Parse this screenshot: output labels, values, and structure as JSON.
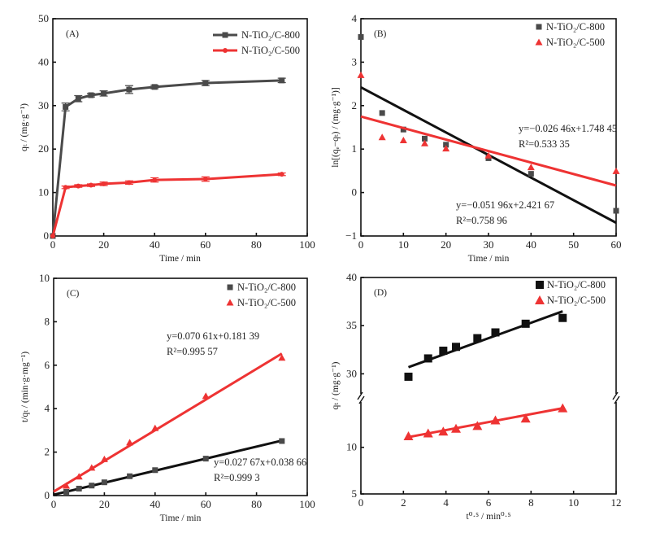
{
  "colors": {
    "c800": "#4a4a4a",
    "c800_d": "#111111",
    "c500": "#ee3333",
    "fit800": "#111111"
  },
  "chart_data": [
    {
      "panel": "(A)",
      "type": "line",
      "xlabel": "Time / min",
      "ylabel": "qₜ / (mg·g⁻¹)",
      "xlim": [
        0,
        100
      ],
      "ylim": [
        0,
        50
      ],
      "xticks": [
        0,
        20,
        40,
        60,
        80,
        100
      ],
      "yticks": [
        0,
        10,
        20,
        30,
        40,
        50
      ],
      "x": [
        0,
        5,
        10,
        15,
        20,
        30,
        40,
        60,
        90
      ],
      "series": [
        {
          "name": "N-TiO₂/C-800",
          "marker": "square",
          "values": [
            0,
            29.7,
            31.6,
            32.4,
            32.8,
            33.7,
            34.3,
            35.2,
            35.8
          ],
          "errors": [
            0,
            0.9,
            0.7,
            0.4,
            0.6,
            0.9,
            0.4,
            0.6,
            0.5
          ]
        },
        {
          "name": "N-TiO₂/C-500",
          "marker": "circle",
          "values": [
            0,
            11.2,
            11.5,
            11.7,
            12.0,
            12.3,
            12.9,
            13.1,
            14.2
          ],
          "errors": [
            0,
            0.3,
            0.3,
            0.3,
            0.4,
            0.4,
            0.5,
            0.5,
            0.3
          ]
        }
      ]
    },
    {
      "panel": "(B)",
      "type": "scatter",
      "xlabel": "Time / min",
      "ylabel": "ln[(qₑ−qₜ) / (mg·g⁻¹)]",
      "xlim": [
        0,
        60
      ],
      "ylim": [
        -1,
        4
      ],
      "xticks": [
        0,
        10,
        20,
        30,
        40,
        50,
        60
      ],
      "yticks": [
        -1,
        0,
        1,
        2,
        3,
        4
      ],
      "x": [
        0,
        5,
        10,
        15,
        20,
        30,
        40,
        60
      ],
      "series": [
        {
          "name": "N-TiO₂/C-800",
          "marker": "square",
          "values": [
            3.58,
            1.83,
            1.45,
            1.24,
            1.1,
            0.79,
            0.43,
            -0.42
          ],
          "fit": {
            "slope": -0.05196,
            "intercept": 2.42167
          },
          "equation": "y=−0.051 96x+2.421 67",
          "r2": "R²=0.758 96"
        },
        {
          "name": "N-TiO₂/C-500",
          "marker": "triangle",
          "values": [
            2.7,
            1.27,
            1.2,
            1.13,
            1.01,
            0.85,
            0.58,
            0.49
          ],
          "fit": {
            "slope": -0.02646,
            "intercept": 1.74845
          },
          "equation": "y=−0.026 46x+1.748 45",
          "r2": "R²=0.533 35"
        }
      ]
    },
    {
      "panel": "(C)",
      "type": "scatter",
      "xlabel": "Time / min",
      "ylabel": "t/qₜ / (min·g·mg⁻¹)",
      "xlim": [
        0,
        100
      ],
      "ylim": [
        0,
        10
      ],
      "xticks": [
        0,
        20,
        40,
        60,
        80,
        100
      ],
      "yticks": [
        0,
        2,
        4,
        6,
        8,
        10
      ],
      "x": [
        5,
        10,
        15,
        20,
        30,
        40,
        60,
        90
      ],
      "series": [
        {
          "name": "N-TiO₂/C-800",
          "marker": "square",
          "values": [
            0.17,
            0.32,
            0.46,
            0.61,
            0.89,
            1.17,
            1.7,
            2.51
          ],
          "fit": {
            "slope": 0.02767,
            "intercept": 0.03866
          },
          "equation": "y=0.027 67x+0.038 66",
          "r2": "R²=0.999 3"
        },
        {
          "name": "N-TiO₂/C-500",
          "marker": "triangle",
          "values": [
            0.45,
            0.87,
            1.28,
            1.67,
            2.44,
            3.1,
            4.58,
            6.34
          ],
          "fit": {
            "slope": 0.07061,
            "intercept": 0.18139
          },
          "equation": "y=0.070 61x+0.181 39",
          "r2": "R²=0.995 57"
        }
      ]
    },
    {
      "panel": "(D)",
      "type": "scatter",
      "xlabel": "t⁰·⁵ / min⁰·⁵",
      "ylabel": "qₜ / (mg·g⁻¹)",
      "xlim": [
        0,
        12
      ],
      "ylim": [
        5,
        40
      ],
      "axis_break": [
        15.3,
        27.5
      ],
      "xticks": [
        0,
        2,
        4,
        6,
        8,
        10,
        12
      ],
      "yticks": [
        5,
        10,
        30,
        35,
        40
      ],
      "x": [
        2.236,
        3.162,
        3.873,
        4.472,
        5.477,
        6.325,
        7.746,
        9.487
      ],
      "series": [
        {
          "name": "N-TiO₂/C-800",
          "marker": "square",
          "values": [
            29.7,
            31.6,
            32.4,
            32.8,
            33.7,
            34.3,
            35.2,
            35.8
          ],
          "fit": {
            "slope": 0.8,
            "intercept": 28.9
          }
        },
        {
          "name": "N-TiO₂/C-500",
          "marker": "triangle",
          "values": [
            11.2,
            11.5,
            11.7,
            12.0,
            12.3,
            12.9,
            13.1,
            14.2
          ],
          "fit": {
            "slope": 0.428,
            "intercept": 10.14
          }
        }
      ]
    }
  ]
}
